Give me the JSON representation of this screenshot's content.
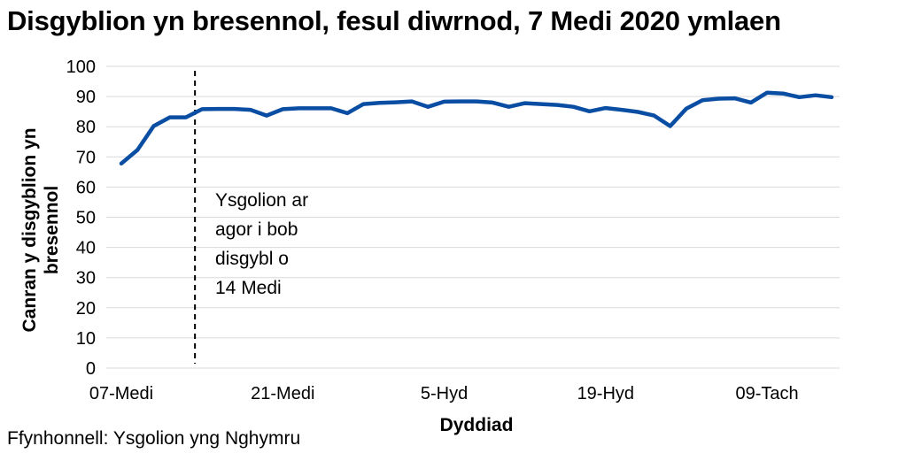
{
  "chart_data": {
    "type": "line",
    "title": "Disgyblion yn bresennol, fesul diwrnod, 7 Medi 2020 ymlaen",
    "xlabel": "Dyddiad",
    "ylabel_lines": [
      "Canran y disgyblion yn",
      "bresennol"
    ],
    "ylim": [
      0,
      100
    ],
    "yticks": [
      0,
      10,
      20,
      30,
      40,
      50,
      60,
      70,
      80,
      90,
      100
    ],
    "xtick_labels": [
      {
        "label": "07-Medi",
        "index": 0
      },
      {
        "label": "21-Medi",
        "index": 10
      },
      {
        "label": "5-Hyd",
        "index": 20
      },
      {
        "label": "19-Hyd",
        "index": 30
      },
      {
        "label": "09-Tach",
        "index": 40
      }
    ],
    "grid": true,
    "series": [
      {
        "color": "#0a4ea3",
        "values": [
          67.8,
          72.3,
          80.2,
          83.1,
          83.1,
          85.8,
          85.9,
          85.9,
          85.6,
          83.7,
          85.8,
          86.1,
          86.1,
          86.1,
          84.5,
          87.5,
          87.9,
          88.1,
          88.4,
          86.6,
          88.3,
          88.4,
          88.4,
          88.0,
          86.6,
          87.8,
          87.5,
          87.2,
          86.6,
          85.1,
          86.2,
          85.6,
          84.9,
          83.7,
          80.2,
          86.0,
          88.8,
          89.3,
          89.4,
          88.0,
          91.3,
          91.0,
          89.8,
          90.4,
          89.8
        ]
      }
    ],
    "annotation": {
      "index": 5,
      "style": "dashed-vertical",
      "text_lines": [
        "Ysgolion ar",
        "agor i bob",
        "disgybl o",
        "14 Medi"
      ]
    }
  },
  "source": "Ffynhonnell: Ysgolion yng Nghymru"
}
